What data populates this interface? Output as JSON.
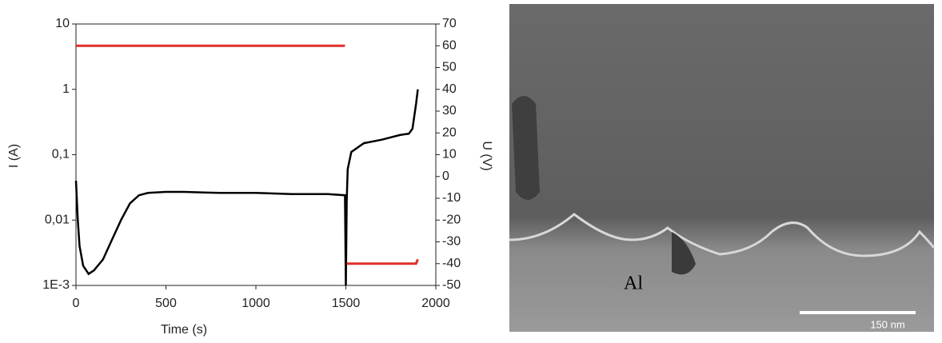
{
  "chart_data": {
    "type": "line",
    "x_label": "Time (s)",
    "y_label": "I (A)",
    "y2_label": "U (V)",
    "log_y": true,
    "x": [
      0,
      10,
      20,
      40,
      70,
      100,
      150,
      200,
      250,
      300,
      350,
      400,
      500,
      600,
      800,
      1000,
      1200,
      1400,
      1495,
      1500,
      1505,
      1510,
      1530,
      1600,
      1700,
      1800,
      1850,
      1870,
      1890,
      1900
    ],
    "series": [
      {
        "name": "I",
        "color": "#000000",
        "values": [
          0.04,
          0.01,
          0.004,
          0.002,
          0.0015,
          0.0017,
          0.0025,
          0.005,
          0.01,
          0.018,
          0.024,
          0.026,
          0.027,
          0.027,
          0.026,
          0.026,
          0.025,
          0.025,
          0.024,
          0.001,
          0.02,
          0.06,
          0.11,
          0.15,
          0.17,
          0.2,
          0.21,
          0.25,
          0.6,
          1
        ]
      },
      {
        "name": "U",
        "color": "#e0302a",
        "axis": "y2",
        "values": [
          60,
          60,
          60,
          60,
          60,
          60,
          60,
          60,
          60,
          60,
          60,
          60,
          60,
          60,
          60,
          60,
          60,
          60,
          60,
          null,
          -40,
          -40,
          -40,
          -40,
          -40,
          -40,
          -40,
          -40,
          -40,
          -38
        ]
      }
    ],
    "xlim": [
      0,
      2000
    ],
    "xticks": [
      0,
      500,
      1000,
      1500,
      2000
    ],
    "ylim": [
      0.001,
      10
    ],
    "yticks": [
      {
        "value": 0.001,
        "label": "1E-3"
      },
      {
        "value": 0.01,
        "label": "0,01"
      },
      {
        "value": 0.1,
        "label": "0,1"
      },
      1,
      10
    ],
    "y2lim": [
      -50,
      70
    ],
    "y2ticks": [
      -50,
      -40,
      -30,
      -20,
      -10,
      0,
      10,
      20,
      30,
      40,
      50,
      60,
      70
    ]
  },
  "image": {
    "label": "Al",
    "scale_bar": "150 nm"
  }
}
